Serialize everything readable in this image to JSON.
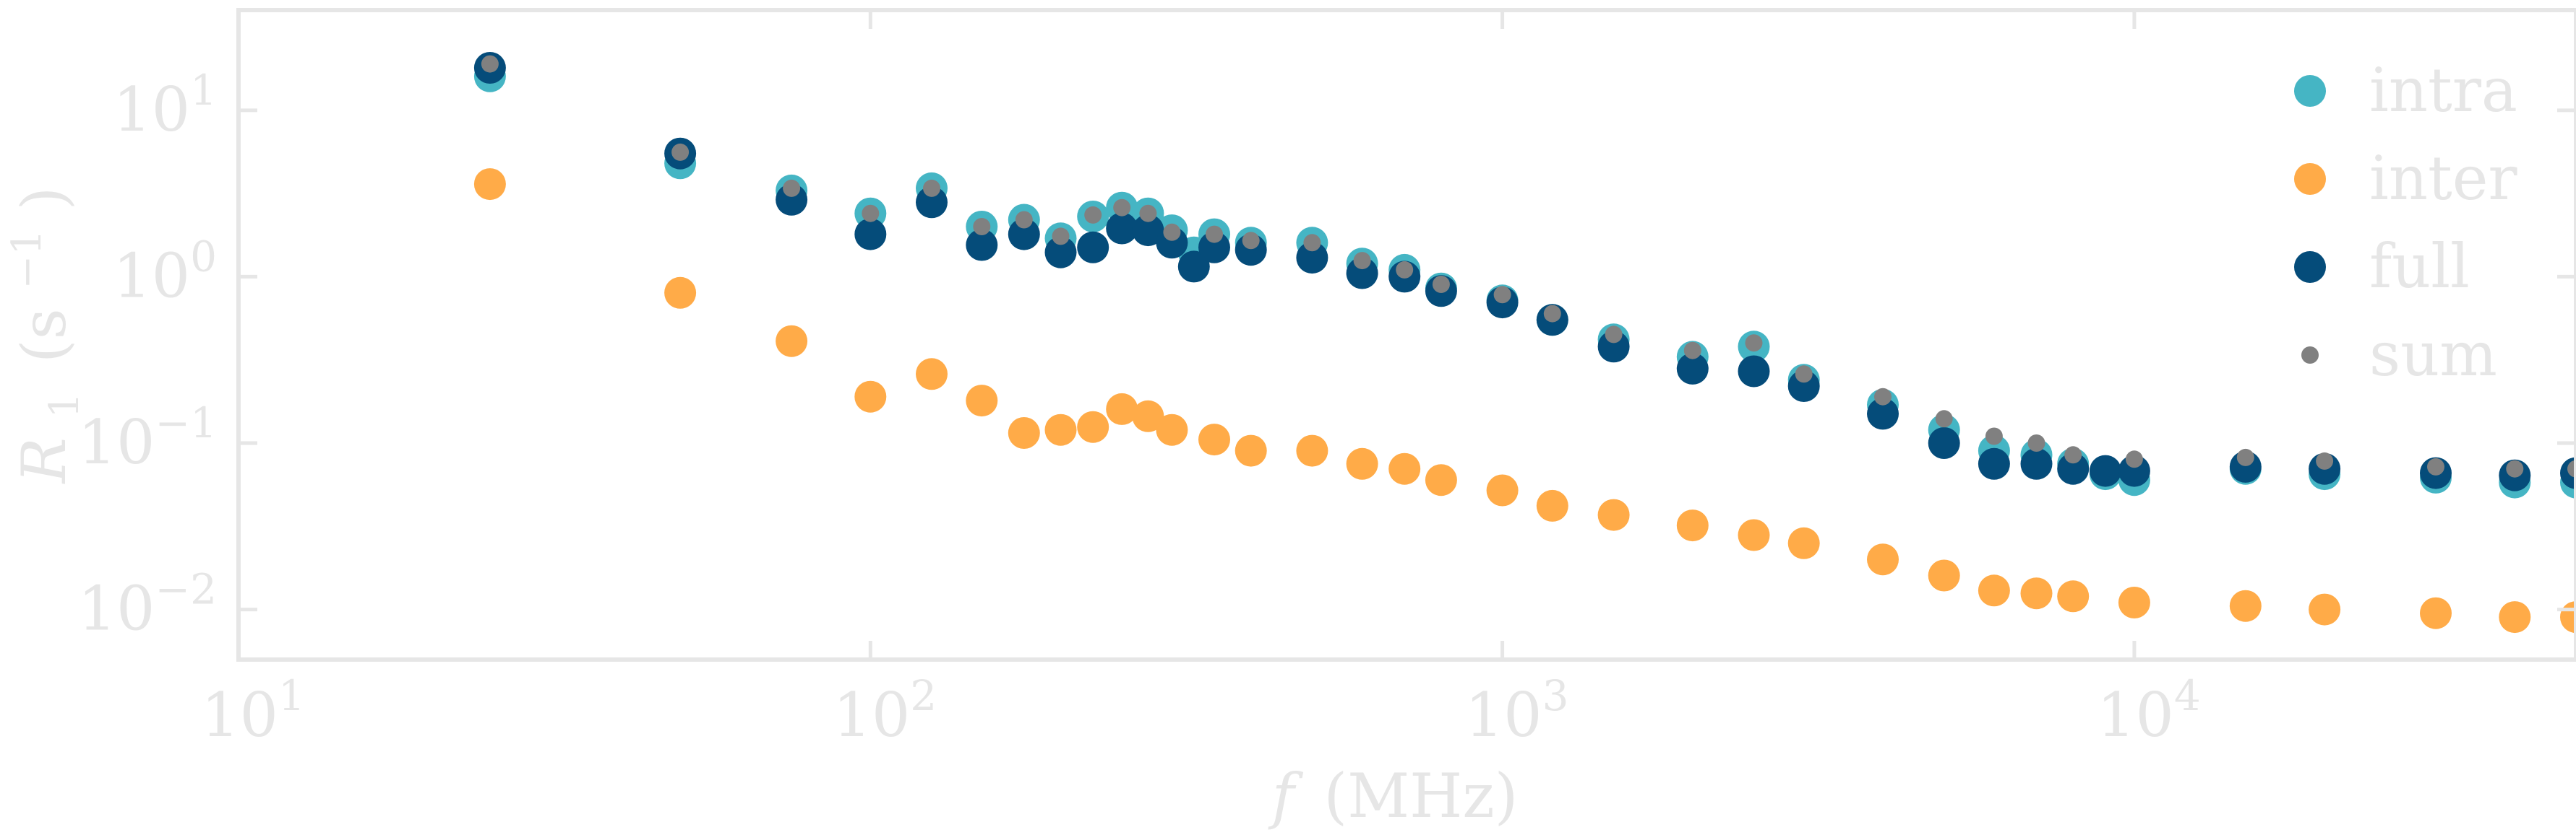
{
  "chart_data": {
    "type": "scatter",
    "title": "",
    "xlabel": {
      "var": "f",
      "unit": "(MHz)"
    },
    "ylabel": {
      "var": "R",
      "sub": "1",
      "unit_open": "(s",
      "unit_sup": "−1",
      "unit_close": ")"
    },
    "xscale": "log",
    "yscale": "log",
    "xlim": [
      10,
      50000
    ],
    "ylim": [
      0.005,
      40
    ],
    "grid": false,
    "legend_position": "top-right",
    "x_ticks": [
      {
        "value": 10,
        "base": "10",
        "exp": "1"
      },
      {
        "value": 100,
        "base": "10",
        "exp": "2"
      },
      {
        "value": 1000,
        "base": "10",
        "exp": "3"
      },
      {
        "value": 10000,
        "base": "10",
        "exp": "4"
      }
    ],
    "y_ticks": [
      {
        "value": 10,
        "base": "10",
        "exp": "1"
      },
      {
        "value": 1,
        "base": "10",
        "exp": "0"
      },
      {
        "value": 0.1,
        "base": "10",
        "exp": "−1"
      },
      {
        "value": 0.01,
        "base": "10",
        "exp": "−2"
      }
    ],
    "colors": {
      "intra": "#45b5c4",
      "inter": "#ffab48",
      "full": "#054c7a",
      "sum": "#808080"
    },
    "series": [
      {
        "name": "intra",
        "marker": "large",
        "points": [
          [
            25,
            16
          ],
          [
            50,
            4.8
          ],
          [
            75,
            3.3
          ],
          [
            100,
            2.4
          ],
          [
            125,
            3.4
          ],
          [
            150,
            2.0
          ],
          [
            175,
            2.2
          ],
          [
            200,
            1.7
          ],
          [
            225,
            2.3
          ],
          [
            250,
            2.6
          ],
          [
            275,
            2.4
          ],
          [
            300,
            1.9
          ],
          [
            325,
            1.4
          ],
          [
            350,
            1.8
          ],
          [
            400,
            1.6
          ],
          [
            500,
            1.6
          ],
          [
            600,
            1.2
          ],
          [
            700,
            1.1
          ],
          [
            800,
            0.85
          ],
          [
            1000,
            0.72
          ],
          [
            1200,
            0.55
          ],
          [
            1500,
            0.42
          ],
          [
            2000,
            0.33
          ],
          [
            2500,
            0.38
          ],
          [
            3000,
            0.24
          ],
          [
            4000,
            0.17
          ],
          [
            5000,
            0.12
          ],
          [
            6000,
            0.09
          ],
          [
            7000,
            0.085
          ],
          [
            8000,
            0.075
          ],
          [
            9000,
            0.065
          ],
          [
            10000,
            0.06
          ],
          [
            15000,
            0.07
          ],
          [
            20000,
            0.065
          ],
          [
            30000,
            0.062
          ],
          [
            40000,
            0.058
          ],
          [
            50000,
            0.058
          ]
        ]
      },
      {
        "name": "inter",
        "marker": "large",
        "points": [
          [
            25,
            3.6
          ],
          [
            50,
            0.8
          ],
          [
            75,
            0.41
          ],
          [
            100,
            0.19
          ],
          [
            125,
            0.26
          ],
          [
            150,
            0.18
          ],
          [
            175,
            0.115
          ],
          [
            200,
            0.12
          ],
          [
            225,
            0.125
          ],
          [
            250,
            0.16
          ],
          [
            275,
            0.145
          ],
          [
            300,
            0.12
          ],
          [
            350,
            0.105
          ],
          [
            400,
            0.09
          ],
          [
            500,
            0.09
          ],
          [
            600,
            0.075
          ],
          [
            700,
            0.07
          ],
          [
            800,
            0.06
          ],
          [
            1000,
            0.052
          ],
          [
            1200,
            0.042
          ],
          [
            1500,
            0.037
          ],
          [
            2000,
            0.032
          ],
          [
            2500,
            0.028
          ],
          [
            3000,
            0.025
          ],
          [
            4000,
            0.02
          ],
          [
            5000,
            0.016
          ],
          [
            6000,
            0.013
          ],
          [
            7000,
            0.0125
          ],
          [
            8000,
            0.012
          ],
          [
            10000,
            0.011
          ],
          [
            15000,
            0.0105
          ],
          [
            20000,
            0.01
          ],
          [
            30000,
            0.0095
          ],
          [
            40000,
            0.009
          ],
          [
            50000,
            0.009
          ]
        ]
      },
      {
        "name": "full",
        "marker": "large",
        "points": [
          [
            25,
            18
          ],
          [
            50,
            5.5
          ],
          [
            75,
            2.9
          ],
          [
            100,
            1.8
          ],
          [
            125,
            2.8
          ],
          [
            150,
            1.55
          ],
          [
            175,
            1.8
          ],
          [
            200,
            1.4
          ],
          [
            225,
            1.5
          ],
          [
            250,
            1.95
          ],
          [
            275,
            1.9
          ],
          [
            300,
            1.6
          ],
          [
            325,
            1.15
          ],
          [
            350,
            1.5
          ],
          [
            400,
            1.45
          ],
          [
            500,
            1.3
          ],
          [
            600,
            1.05
          ],
          [
            700,
            1.0
          ],
          [
            800,
            0.82
          ],
          [
            1000,
            0.7
          ],
          [
            1200,
            0.55
          ],
          [
            1500,
            0.38
          ],
          [
            2000,
            0.28
          ],
          [
            2500,
            0.27
          ],
          [
            3000,
            0.22
          ],
          [
            4000,
            0.15
          ],
          [
            5000,
            0.1
          ],
          [
            6000,
            0.075
          ],
          [
            7000,
            0.075
          ],
          [
            8000,
            0.07
          ],
          [
            9000,
            0.068
          ],
          [
            10000,
            0.068
          ],
          [
            15000,
            0.072
          ],
          [
            20000,
            0.07
          ],
          [
            30000,
            0.066
          ],
          [
            40000,
            0.064
          ],
          [
            50000,
            0.066
          ]
        ]
      },
      {
        "name": "sum",
        "marker": "small",
        "points": [
          [
            25,
            19
          ],
          [
            50,
            5.6
          ],
          [
            75,
            3.4
          ],
          [
            100,
            2.4
          ],
          [
            125,
            3.4
          ],
          [
            150,
            2.0
          ],
          [
            175,
            2.2
          ],
          [
            200,
            1.75
          ],
          [
            225,
            2.35
          ],
          [
            250,
            2.6
          ],
          [
            275,
            2.4
          ],
          [
            300,
            1.85
          ],
          [
            350,
            1.8
          ],
          [
            400,
            1.65
          ],
          [
            500,
            1.6
          ],
          [
            600,
            1.25
          ],
          [
            700,
            1.1
          ],
          [
            800,
            0.9
          ],
          [
            1000,
            0.78
          ],
          [
            1200,
            0.6
          ],
          [
            1500,
            0.45
          ],
          [
            2000,
            0.36
          ],
          [
            2500,
            0.4
          ],
          [
            3000,
            0.26
          ],
          [
            4000,
            0.19
          ],
          [
            5000,
            0.14
          ],
          [
            6000,
            0.11
          ],
          [
            7000,
            0.1
          ],
          [
            8000,
            0.085
          ],
          [
            10000,
            0.08
          ],
          [
            15000,
            0.082
          ],
          [
            20000,
            0.078
          ],
          [
            30000,
            0.072
          ],
          [
            40000,
            0.07
          ],
          [
            50000,
            0.07
          ]
        ]
      }
    ]
  }
}
